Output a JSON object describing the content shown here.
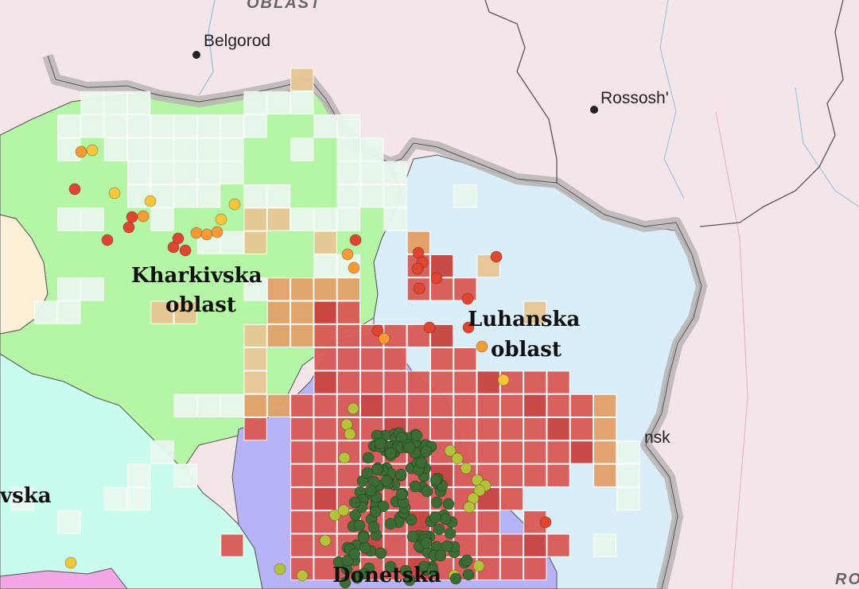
{
  "labels": {
    "top_oblast": "OBLAST",
    "belgorod": "Belgorod",
    "rossosh": "Rossosh'",
    "kharkivska_line1": "Kharkivska",
    "kharkivska_line2": "oblast",
    "luhanska_line1": "Luhanska",
    "luhanska_line2": "oblast",
    "donetska": "Donetska",
    "west_partial": "vska",
    "east_partial": "nsk",
    "bottom_right_partial": "RO"
  },
  "colors": {
    "russia_bg": "#f4e6e8",
    "kharkiv_fill": "#b4f5a6",
    "luhansk_fill": "#d9eef9",
    "donetsk_fill": "#b6b3f6",
    "dnipro_fill": "#c9fbef",
    "poltava_fill": "#fdf0d6",
    "border_gray": "#b8b4b4",
    "grid_light": "#e9f8ee",
    "grid_tan": "#e8c795",
    "grid_orange": "#e3a06a",
    "grid_red": "#d95a55",
    "grid_deepred": "#c9433f",
    "dot_red": "#e0452f",
    "dot_orange": "#f59a35",
    "dot_yellow": "#f5c53a",
    "dot_olive": "#b6c33a",
    "dot_green": "#3c6b33"
  }
}
